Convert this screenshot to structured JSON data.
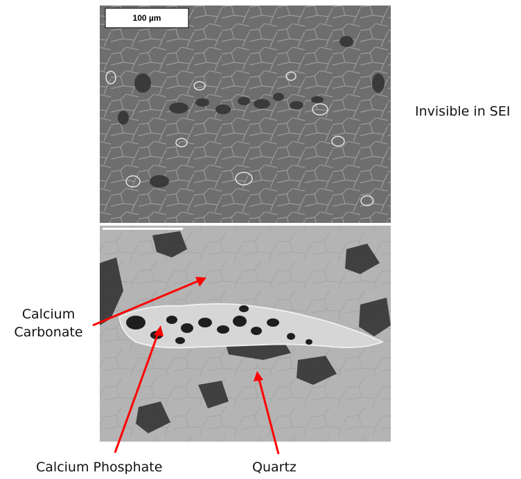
{
  "top_panel": {
    "scale_label": "100 µm",
    "side_note": "Invisible in SEI"
  },
  "bottom_panel": {
    "labels": {
      "calcium_carbonate": [
        "Calcium",
        "Carbonate"
      ],
      "calcium_phosphate": "Calcium Phosphate",
      "quartz": "Quartz"
    }
  },
  "colors": {
    "top_background": "#6e6e6e",
    "bottom_background": "#b4b4b4",
    "arrow": "#ff0000",
    "phosphate_vein": "#d6d6d6",
    "pore": "#1e1e1e"
  }
}
